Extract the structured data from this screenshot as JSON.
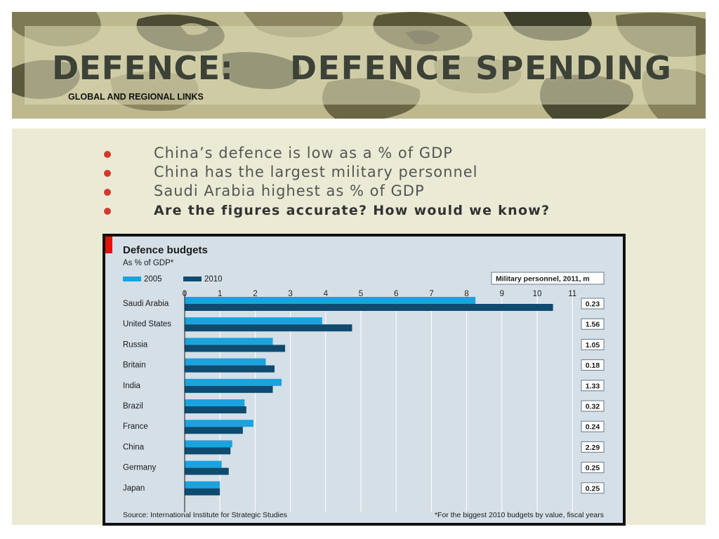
{
  "slide": {
    "title_left": "DEFENCE:",
    "title_right": "DEFENCE SPENDING",
    "subtitle": "GLOBAL AND REGIONAL LINKS",
    "bullets": [
      {
        "text": "China’s defence is low as  a % of GDP",
        "bold": false
      },
      {
        "text": "China has the largest military personnel",
        "bold": false
      },
      {
        "text": "Saudi Arabia highest as % of GDP",
        "bold": false
      },
      {
        "text": "Are the figures accurate? How would we know?",
        "bold": true
      }
    ],
    "colors": {
      "bullet": "#d23a2e",
      "title": "#3d4237"
    }
  },
  "chart_data": {
    "type": "bar",
    "title": "Defence budgets",
    "subtitle": "As % of GDP*",
    "categories": [
      "Saudi Arabia",
      "United States",
      "Russia",
      "Britain",
      "India",
      "Brazil",
      "France",
      "China",
      "Germany",
      "Japan"
    ],
    "series": [
      {
        "name": "2005",
        "color": "#1ba3dd",
        "values": [
          8.25,
          3.9,
          2.5,
          2.3,
          2.75,
          1.7,
          1.95,
          1.35,
          1.05,
          1.0
        ]
      },
      {
        "name": "2010",
        "color": "#0f4b6e",
        "values": [
          10.45,
          4.75,
          2.85,
          2.55,
          2.5,
          1.75,
          1.65,
          1.3,
          1.25,
          1.0
        ]
      }
    ],
    "xlim": [
      0,
      11
    ],
    "xticks": [
      "0",
      "1",
      "2",
      "3",
      "4",
      "5",
      "6",
      "7",
      "8",
      "9",
      "10",
      "11"
    ],
    "orientation": "horizontal",
    "legend_position": "top-left",
    "side_panel": {
      "label": "Military personnel, 2011, m",
      "values": [
        "0.23",
        "1.56",
        "1.05",
        "0.18",
        "1.33",
        "0.32",
        "0.24",
        "2.29",
        "0.25",
        "0.25"
      ]
    },
    "source": "Source: International Institute for Strategic Studies",
    "footnote": "*For the biggest 2010 budgets by value, fiscal years",
    "grid": true
  }
}
